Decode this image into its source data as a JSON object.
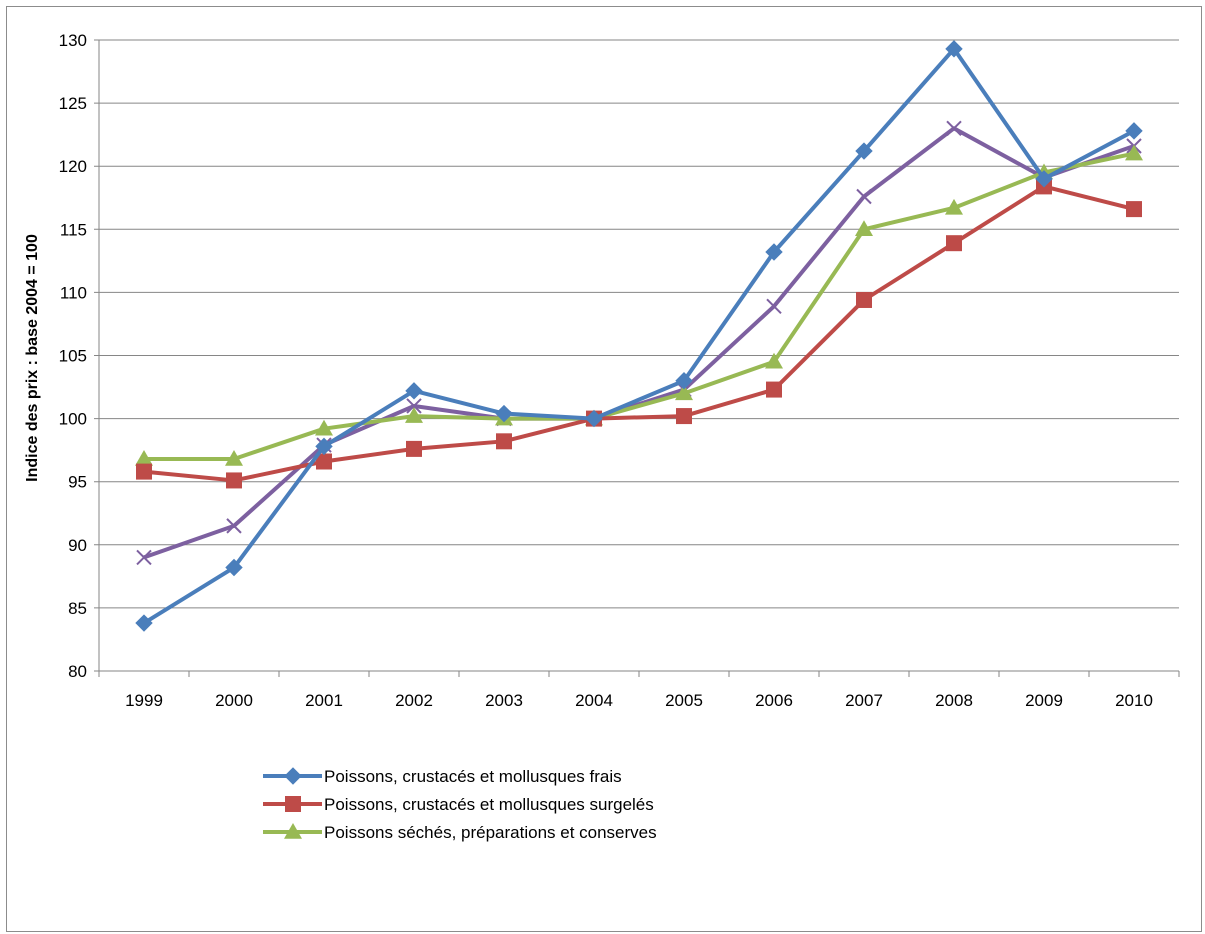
{
  "chart_data": {
    "type": "line",
    "title": "",
    "xlabel": "",
    "ylabel": "Indice des prix : base 2004 = 100",
    "ylim": [
      80,
      130
    ],
    "yticks": [
      80,
      85,
      90,
      95,
      100,
      105,
      110,
      115,
      120,
      125,
      130
    ],
    "grid": true,
    "legend_position": "bottom",
    "categories": [
      "1999",
      "2000",
      "2001",
      "2002",
      "2003",
      "2004",
      "2005",
      "2006",
      "2007",
      "2008",
      "2009",
      "2010"
    ],
    "series": [
      {
        "name": "Poissons, crustacés et mollusques frais",
        "color": "#4a7ebb",
        "marker": "diamond",
        "in_legend": true,
        "values": [
          83.8,
          88.2,
          97.8,
          102.2,
          100.4,
          100.0,
          103.0,
          113.2,
          121.2,
          129.3,
          119.0,
          122.8
        ]
      },
      {
        "name": "Poissons, crustacés et mollusques surgelés",
        "color": "#be4b48",
        "marker": "square",
        "in_legend": true,
        "values": [
          95.8,
          95.1,
          96.6,
          97.6,
          98.2,
          100.0,
          100.2,
          102.3,
          109.4,
          113.9,
          118.4,
          116.6
        ]
      },
      {
        "name": "Poissons séchés, préparations et conserves",
        "color": "#98b954",
        "marker": "triangle",
        "in_legend": true,
        "values": [
          96.8,
          96.8,
          99.2,
          100.2,
          100.0,
          100.0,
          102.0,
          104.5,
          115.0,
          116.7,
          119.5,
          121.0
        ]
      },
      {
        "name": "",
        "color": "#7d60a0",
        "marker": "x",
        "in_legend": false,
        "values": [
          89.0,
          91.5,
          97.9,
          101.0,
          100.0,
          100.0,
          102.3,
          108.9,
          117.6,
          123.0,
          119.1,
          121.6
        ]
      }
    ]
  }
}
